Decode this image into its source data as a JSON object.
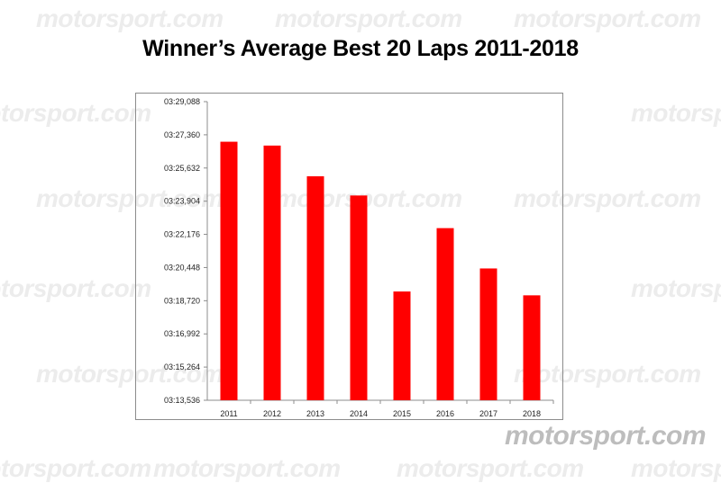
{
  "watermark_text": "motorsport.com",
  "logo_text": "motorsport.com",
  "chart_data": {
    "type": "bar",
    "title": "Winner’s Average Best 20 Laps 2011-2018",
    "xlabel": "",
    "ylabel": "",
    "categories": [
      "2011",
      "2012",
      "2013",
      "2014",
      "2015",
      "2016",
      "2017",
      "2018"
    ],
    "values_seconds": [
      207.0,
      206.8,
      205.2,
      204.2,
      199.2,
      202.5,
      200.4,
      199.0
    ],
    "ylim_seconds": [
      193.536,
      209.088
    ],
    "yticks_seconds": [
      193.536,
      195.264,
      196.992,
      198.72,
      200.448,
      202.176,
      203.904,
      205.632,
      207.36,
      209.088
    ],
    "yticks": [
      "03:13,536",
      "03:15,264",
      "03:16,992",
      "03:18,720",
      "03:20,448",
      "03:22,176",
      "03:23,904",
      "03:25,632",
      "03:27,360",
      "03:29,088"
    ],
    "bar_color": "#ff0000",
    "grid": false,
    "legend": "none"
  }
}
